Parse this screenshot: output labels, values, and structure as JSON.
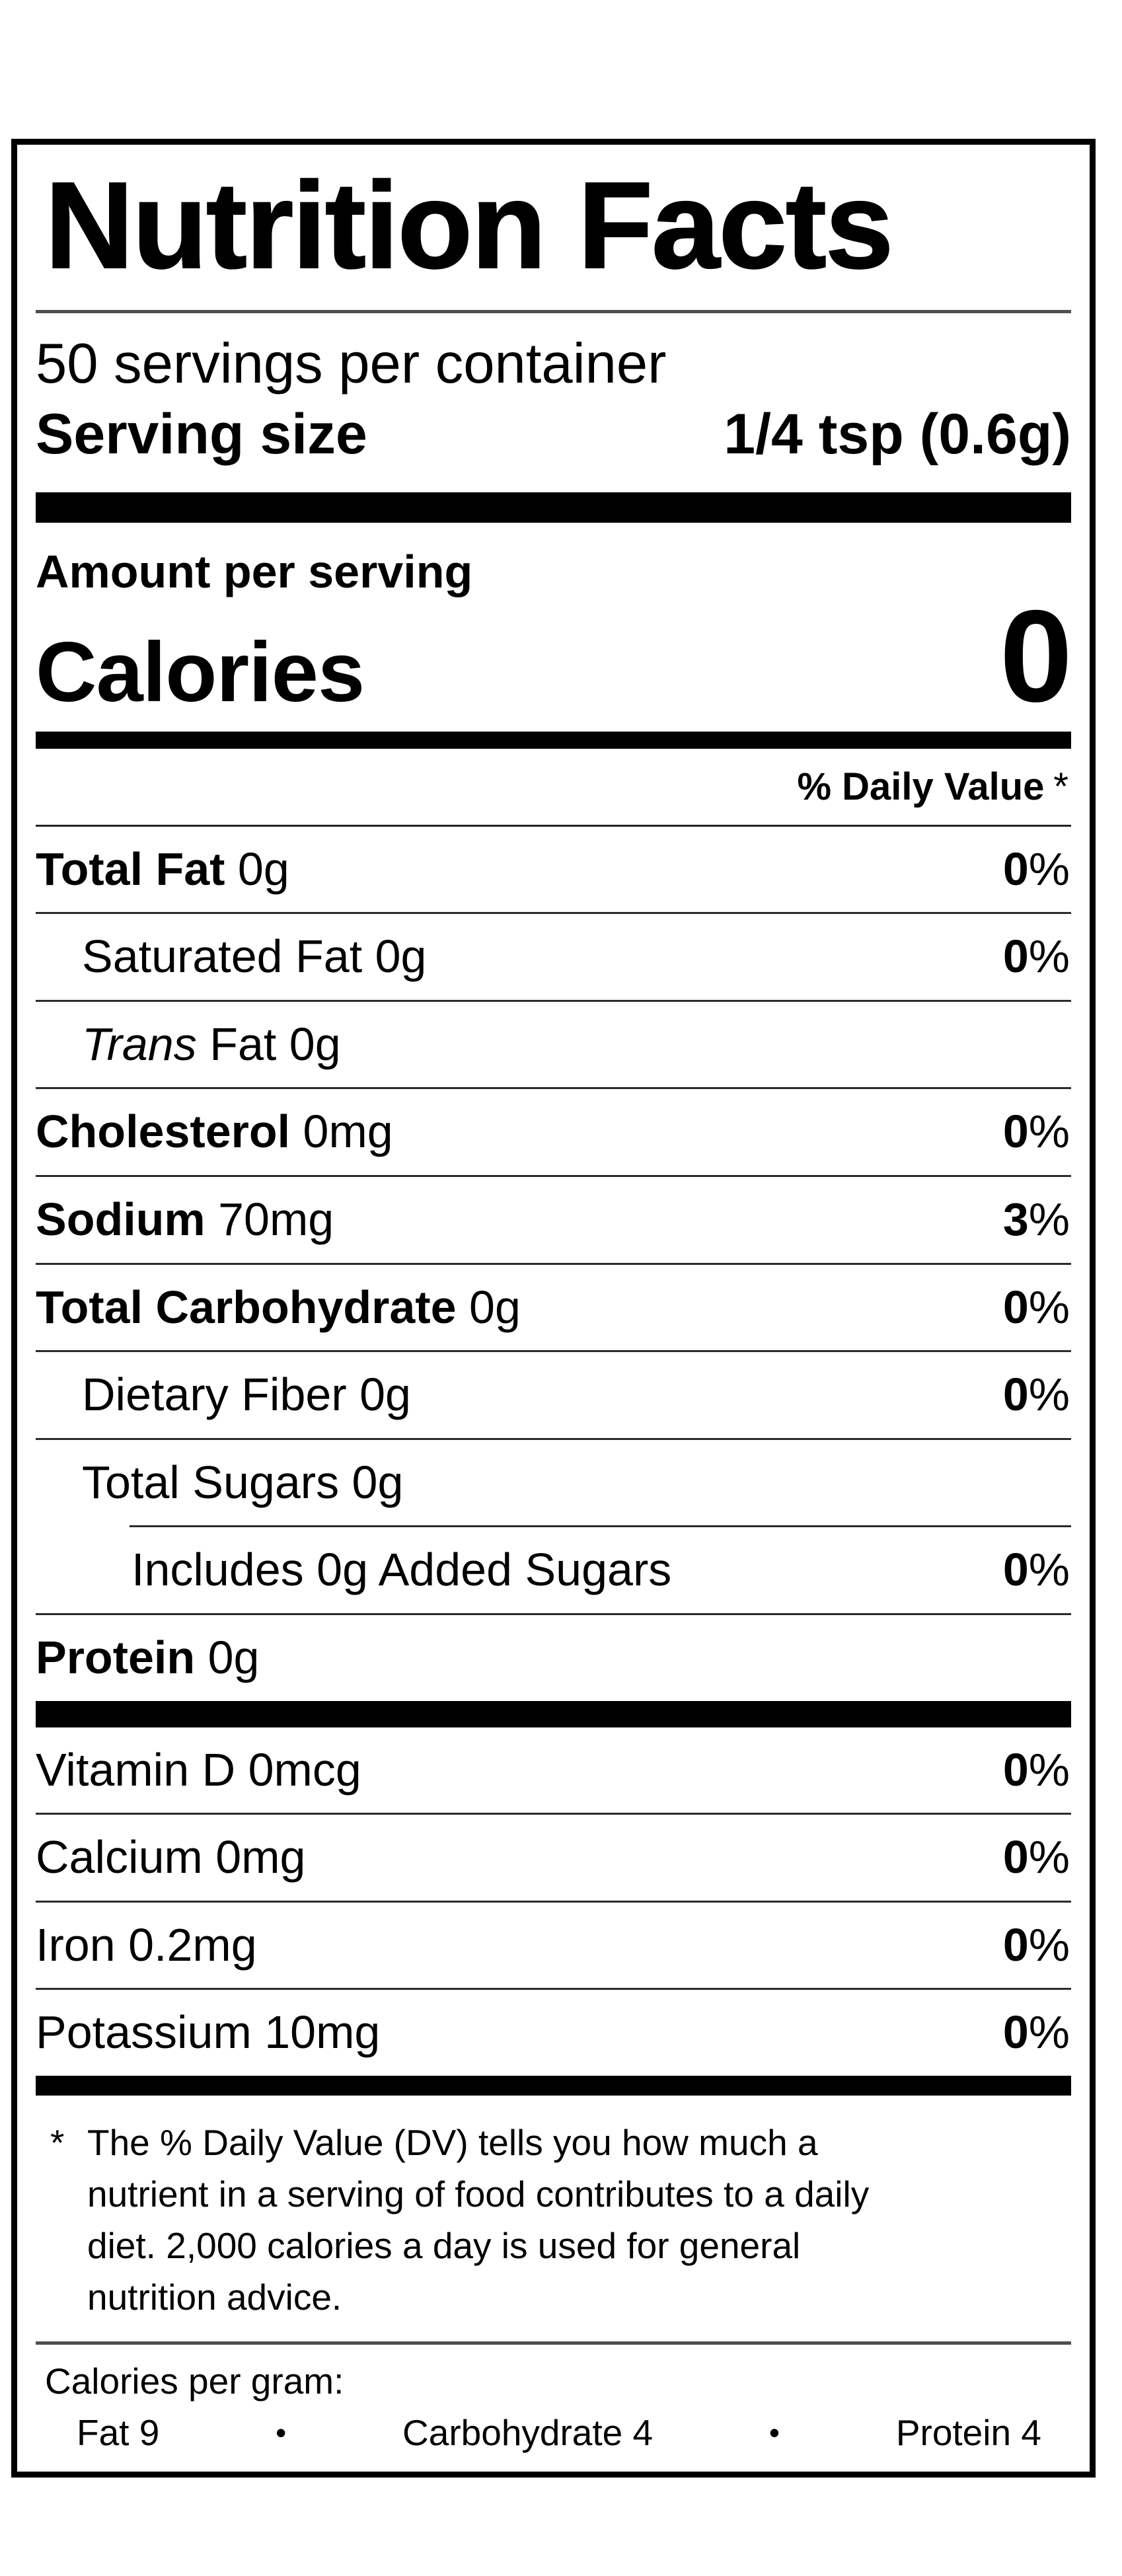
{
  "colors": {
    "ink": "#000000",
    "paper": "#ffffff"
  },
  "label": {
    "title": "Nutrition Facts",
    "servings_per_container": "50 servings per container",
    "serving_size_label": "Serving size",
    "serving_size_value": "1/4 tsp (0.6g)",
    "amount_per_serving": "Amount per serving",
    "calories_label": "Calories",
    "calories_value": "0",
    "daily_value_header": "% Daily Value",
    "daily_value_asterisk": "*",
    "nutrients": [
      {
        "parts": [
          {
            "text": "Total Fat",
            "bold": true
          },
          {
            "text": " 0g"
          }
        ],
        "dv": "0%",
        "indent": 0
      },
      {
        "parts": [
          {
            "text": "Saturated Fat 0g"
          }
        ],
        "dv": "0%",
        "indent": 1
      },
      {
        "parts": [
          {
            "text": "Trans",
            "italic": true
          },
          {
            "text": " Fat 0g"
          }
        ],
        "dv": null,
        "indent": 1
      },
      {
        "parts": [
          {
            "text": "Cholesterol",
            "bold": true
          },
          {
            "text": " 0mg"
          }
        ],
        "dv": "0%",
        "indent": 0
      },
      {
        "parts": [
          {
            "text": "Sodium",
            "bold": true
          },
          {
            "text": " 70mg"
          }
        ],
        "dv": "3%",
        "indent": 0
      },
      {
        "parts": [
          {
            "text": "Total Carbohydrate",
            "bold": true
          },
          {
            "text": " 0g"
          }
        ],
        "dv": "0%",
        "indent": 0
      },
      {
        "parts": [
          {
            "text": "Dietary Fiber 0g"
          }
        ],
        "dv": "0%",
        "indent": 1
      },
      {
        "parts": [
          {
            "text": "Total Sugars 0g"
          }
        ],
        "dv": null,
        "indent": 1
      },
      {
        "parts": [
          {
            "text": "Includes 0g Added Sugars"
          }
        ],
        "dv": "0%",
        "indent": 2,
        "indented_divider": true
      },
      {
        "parts": [
          {
            "text": "Protein",
            "bold": true
          },
          {
            "text": " 0g"
          }
        ],
        "dv": null,
        "indent": 0
      }
    ],
    "micronutrients": [
      {
        "name": "Vitamin D 0mcg",
        "dv": "0%"
      },
      {
        "name": "Calcium 0mg",
        "dv": "0%"
      },
      {
        "name": "Iron 0.2mg",
        "dv": "0%"
      },
      {
        "name": "Potassium 10mg",
        "dv": "0%"
      }
    ],
    "footnote_marker": "*",
    "footnote": "The % Daily Value (DV) tells you how much a nutrient in a serving of food contributes to a daily diet. 2,000 calories a day is used for general nutrition advice.",
    "calories_per_gram": {
      "heading": "Calories per gram:",
      "items": [
        "Fat 9",
        "Carbohydrate 4",
        "Protein 4"
      ],
      "separator": "•"
    }
  }
}
